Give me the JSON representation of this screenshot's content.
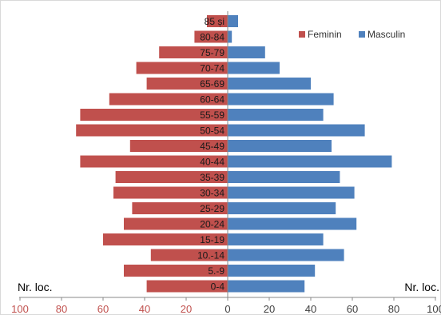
{
  "chart_data": {
    "type": "bar",
    "orientation": "horizontal",
    "subtype": "population-pyramid",
    "categories": [
      "85 și",
      "80-84",
      "75-79",
      "70-74",
      "65-69",
      "60-64",
      "55-59",
      "50-54",
      "45-49",
      "40-44",
      "35-39",
      "30-34",
      "25-29",
      "20-24",
      "15-19",
      "10.-14",
      "5.-9",
      "0-4"
    ],
    "series": [
      {
        "name": "Feminin",
        "color": "#c0504d",
        "side": "left",
        "values": [
          10,
          16,
          33,
          44,
          39,
          57,
          71,
          73,
          47,
          71,
          54,
          55,
          46,
          50,
          60,
          37,
          50,
          39
        ]
      },
      {
        "name": "Masculin",
        "color": "#4f81bd",
        "side": "right",
        "values": [
          5,
          2,
          18,
          25,
          40,
          51,
          46,
          66,
          50,
          79,
          54,
          61,
          52,
          62,
          46,
          56,
          42,
          37
        ]
      }
    ],
    "xlim": [
      -100,
      100
    ],
    "x_ticks_left": [
      "100",
      "80",
      "60",
      "40",
      "20"
    ],
    "x_ticks_right": [
      "0",
      "20",
      "40",
      "60",
      "80",
      "100"
    ],
    "left_tick_color": "#c0504d",
    "right_tick_color": "#404040",
    "xlabel_left": "Nr. loc.",
    "xlabel_right": "Nr. loc.",
    "legend_position": "top-right",
    "grid": false
  }
}
